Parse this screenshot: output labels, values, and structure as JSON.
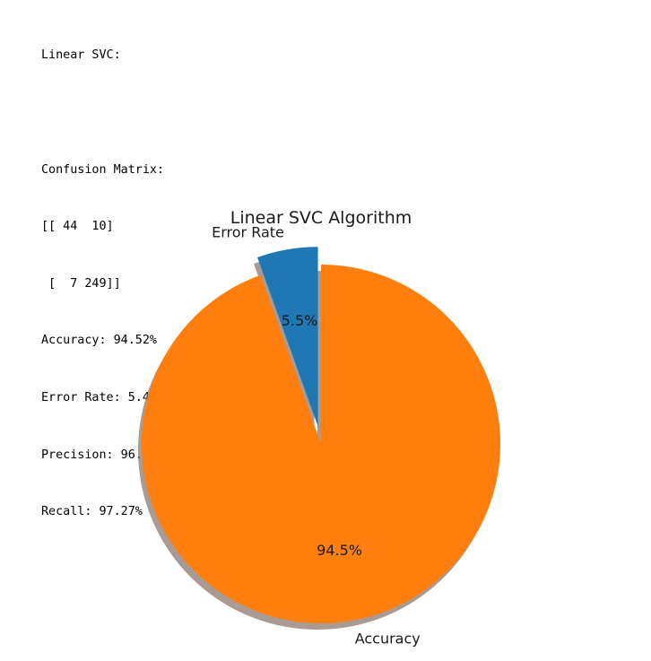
{
  "output": {
    "lines": [
      "Linear SVC:",
      "",
      "Confusion Matrix:",
      "[[ 44  10]",
      " [  7 249]]",
      "Accuracy: 94.52%",
      "Error Rate: 5.48%",
      "Precision: 96.14%",
      "Recall: 97.27%"
    ]
  },
  "chart_data": {
    "type": "pie",
    "title": "Linear SVC Algorithm",
    "labels": [
      "Error Rate",
      "Accuracy"
    ],
    "values": [
      5.48,
      94.52
    ],
    "autopct": [
      "5.5%",
      "94.5%"
    ],
    "colors": [
      "#1f77b4",
      "#ff7f0e"
    ],
    "explode": [
      0.1,
      0
    ],
    "start_angle": 90,
    "shadow": true
  }
}
